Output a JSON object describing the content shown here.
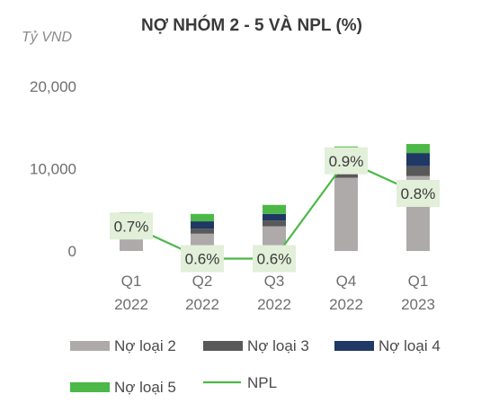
{
  "chart_data": {
    "type": "bar",
    "stacked": true,
    "title": "NỢ NHÓM 2 - 5 VÀ NPL (%)",
    "unit_label": "Tỷ VND",
    "categories": [
      [
        "Q1",
        "2022"
      ],
      [
        "Q2",
        "2022"
      ],
      [
        "Q3",
        "2022"
      ],
      [
        "Q4",
        "2022"
      ],
      [
        "Q1",
        "2023"
      ]
    ],
    "ylim": [
      0,
      20000
    ],
    "yticks": [
      0,
      10000,
      20000
    ],
    "ytick_labels": [
      "0",
      "10,000",
      "20,000"
    ],
    "grid": false,
    "legend_position": "bottom",
    "series": [
      {
        "name": "Nợ loại 2",
        "color": "#aeaaaa",
        "values": [
          2200,
          2100,
          3000,
          8900,
          9100
        ]
      },
      {
        "name": "Nợ loại 3",
        "color": "#595959",
        "values": [
          600,
          600,
          700,
          1700,
          1200
        ]
      },
      {
        "name": "Nợ loại 4",
        "color": "#1f3864",
        "values": [
          1100,
          900,
          800,
          1100,
          1600
        ]
      },
      {
        "name": "Nợ loại 5",
        "color": "#4cb848",
        "values": [
          800,
          900,
          1100,
          1000,
          1100
        ]
      }
    ],
    "line": {
      "name": "NPL",
      "color": "#4cb848",
      "values": [
        0.7,
        0.6,
        0.6,
        0.9,
        0.8
      ],
      "labels": [
        "0.7%",
        "0.6%",
        "0.6%",
        "0.9%",
        "0.8%"
      ],
      "axis_range": [
        0.4,
        1.2
      ],
      "label_box_color": "#e2efd9"
    }
  }
}
